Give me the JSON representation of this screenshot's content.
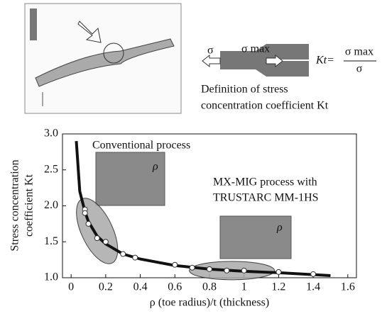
{
  "chart_data": {
    "type": "line",
    "x_label": "ρ (toe radius)/t (thickness)",
    "y_label": [
      "Stress concentration",
      "coefficient Kt"
    ],
    "xlim": [
      -0.05,
      1.65
    ],
    "xticks": [
      0,
      0.2,
      0.4,
      0.6,
      0.8,
      1.0,
      1.2,
      1.4,
      1.6
    ],
    "ylim": [
      1,
      3
    ],
    "yticks": [
      {
        "value": 1,
        "label": "1.0"
      },
      1.5,
      {
        "value": 2,
        "label": "2.0"
      },
      2.5,
      {
        "value": 3,
        "label": "3.0"
      }
    ],
    "series": [
      {
        "type": "line",
        "color": "#111111",
        "x": [
          0.03,
          0.05,
          0.08,
          0.1,
          0.15,
          0.2,
          0.3,
          0.4,
          0.6,
          0.8,
          1.0,
          1.2,
          1.5
        ],
        "values": [
          2.9,
          2.2,
          1.92,
          1.78,
          1.58,
          1.47,
          1.33,
          1.26,
          1.17,
          1.12,
          1.09,
          1.07,
          1.03
        ]
      },
      {
        "type": "scatter",
        "color": "#ffffff",
        "x": [
          0.08,
          0.08,
          0.1,
          0.15,
          0.2,
          0.3,
          0.37,
          0.6,
          0.7,
          0.8,
          0.9,
          1.0,
          1.2,
          1.4
        ],
        "values": [
          1.95,
          1.9,
          1.75,
          1.55,
          1.5,
          1.33,
          1.28,
          1.18,
          1.14,
          1.12,
          1.1,
          1.1,
          1.08,
          1.05
        ]
      }
    ],
    "annotations": [
      "Conventional process",
      "MX-MIG process with",
      "TRUSTARC MM-1HS",
      "ρ",
      "ρ"
    ]
  },
  "diagram": {
    "sigma": "σ",
    "sigma_max": "σ max",
    "kt": "Kt=",
    "numerator": "σ max",
    "denominator": "σ",
    "caption": [
      "Definition of stress",
      "concentration coefficient Kt"
    ]
  }
}
